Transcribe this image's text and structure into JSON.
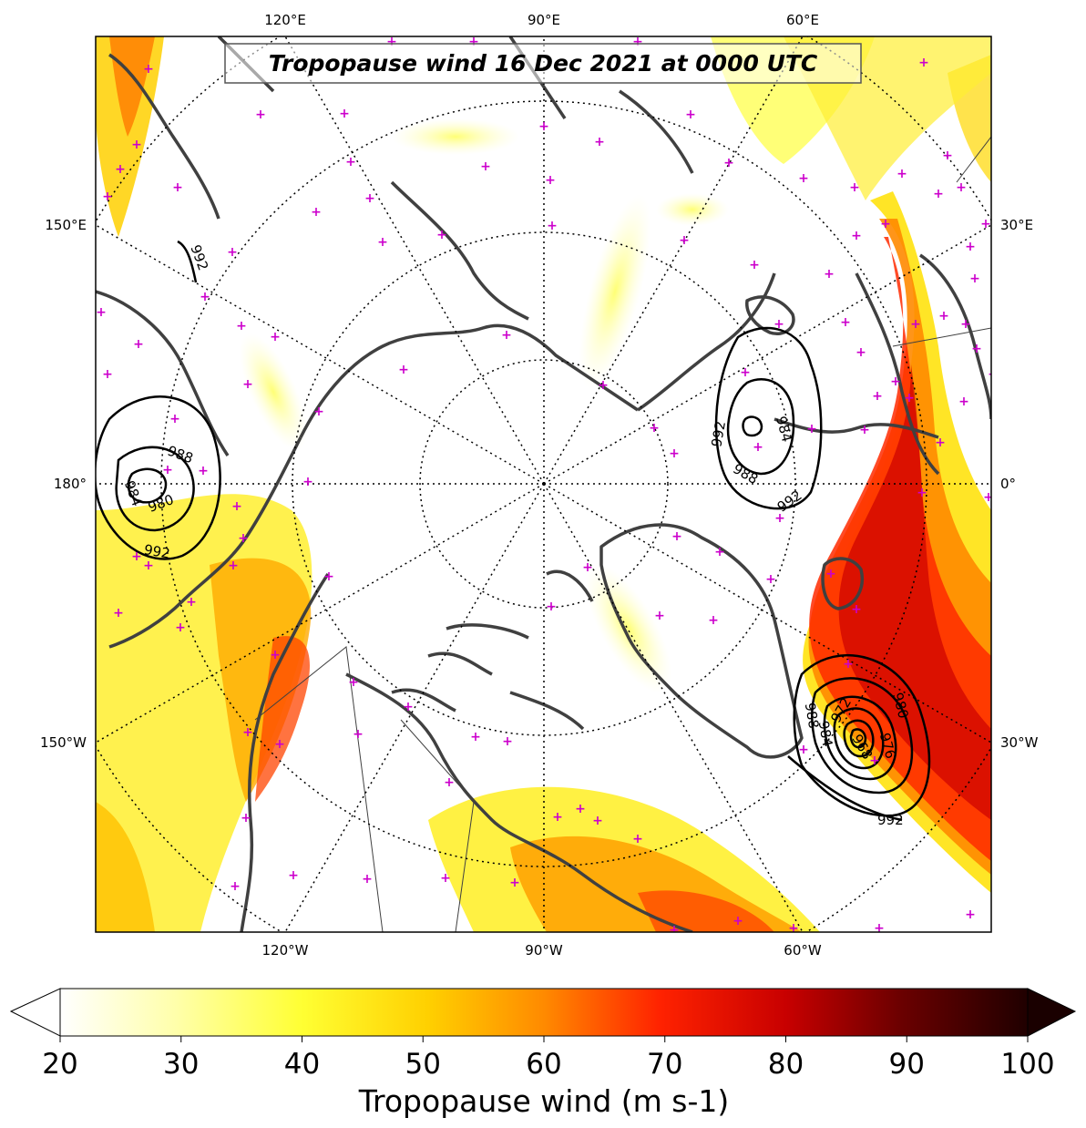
{
  "title": "Tropopause wind 16 Dec 2021 at 0000 UTC",
  "lon_labels": {
    "top": [
      "120°E",
      "90°E",
      "60°E"
    ],
    "bottom": [
      "120°W",
      "90°W",
      "60°W"
    ],
    "left": [
      "150°E",
      "180°",
      "150°W"
    ],
    "right": [
      "30°E",
      "0°",
      "30°W"
    ]
  },
  "pressure_contours": {
    "low_east": [
      "992",
      "988",
      "984",
      "992"
    ],
    "low_west": [
      "992",
      "988",
      "984",
      "980",
      "992"
    ],
    "low_atlantic": [
      "988",
      "984",
      "980",
      "976",
      "972",
      "968",
      "992"
    ]
  },
  "colorbar": {
    "label": "Tropopause wind (m s-1)",
    "ticks": [
      "20",
      "30",
      "40",
      "50",
      "60",
      "70",
      "80",
      "90",
      "100"
    ],
    "min": 20,
    "max": 100,
    "extend": "both"
  },
  "colors": {
    "coast": "#404040",
    "station_marker": "#cc00cc",
    "contour": "#000000"
  }
}
